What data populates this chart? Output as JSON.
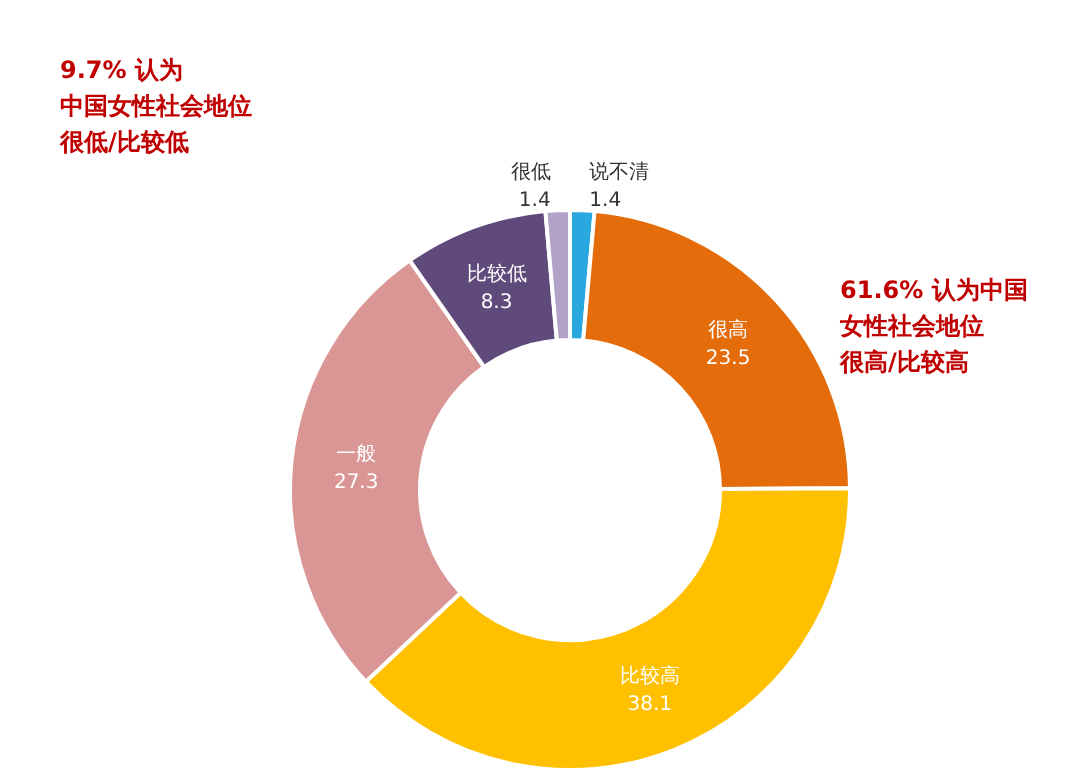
{
  "chart_data": {
    "type": "donut",
    "categories": [
      "说不清",
      "很高",
      "比较高",
      "一般",
      "比较低",
      "很低"
    ],
    "values": [
      1.4,
      23.5,
      38.1,
      27.3,
      8.3,
      1.4
    ],
    "colors": [
      "#29a8e0",
      "#e46c0a",
      "#ffc000",
      "#d99694",
      "#604a7b",
      "#b3a2c7"
    ],
    "data_labels": true,
    "annotations": [
      "9.7% 认为中国女性社会地位很低/比较低",
      "61.6% 认为中国女性社会地位很高/比较高"
    ]
  }
}
